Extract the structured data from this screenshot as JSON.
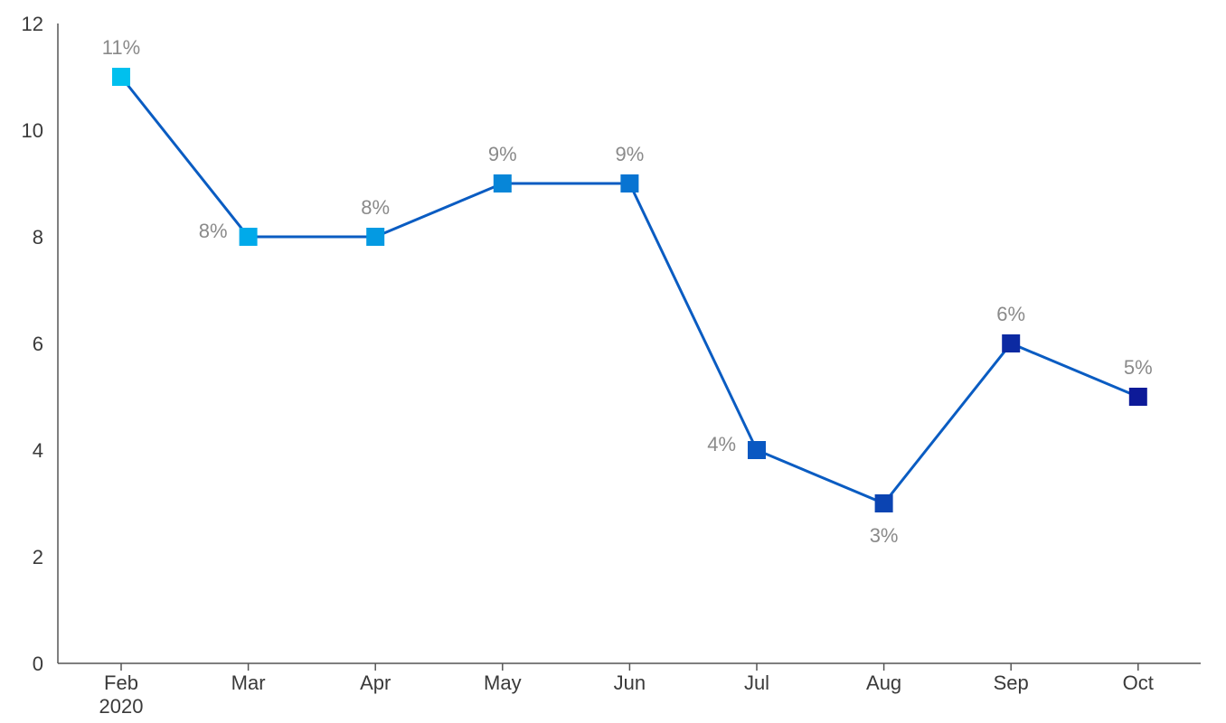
{
  "chart_data": {
    "type": "line",
    "title": "",
    "xlabel": "",
    "ylabel": "",
    "ylim": [
      0,
      12
    ],
    "yticks": [
      "0",
      "2",
      "4",
      "6",
      "8",
      "10",
      "12"
    ],
    "categories": [
      "Feb",
      "Mar",
      "Apr",
      "May",
      "Jun",
      "Jul",
      "Aug",
      "Sep",
      "Oct"
    ],
    "category_sublabels": [
      "2020",
      "",
      "",
      "",
      "",
      "",
      "",
      "",
      ""
    ],
    "series": [
      {
        "values": [
          11,
          8,
          8,
          9,
          9,
          4,
          3,
          6,
          5
        ],
        "data_labels": [
          "11%",
          "8%",
          "8%",
          "9%",
          "9%",
          "4%",
          "3%",
          "6%",
          "5%"
        ],
        "label_positions": [
          "above",
          "left",
          "above",
          "above",
          "above",
          "left",
          "below",
          "above",
          "above"
        ],
        "marker_colors": [
          "#00c0ee",
          "#00aaea",
          "#049ae2",
          "#0786d8",
          "#0874d2",
          "#0a58c2",
          "#0b44b2",
          "#0c2aa2",
          "#0d1a98"
        ]
      }
    ],
    "line_color": "#0a5cc2",
    "grid": false,
    "legend": "none"
  }
}
